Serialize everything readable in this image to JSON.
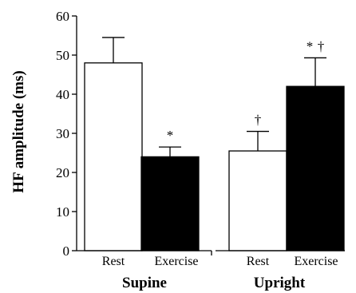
{
  "chart_data": {
    "type": "bar",
    "title": "",
    "xlabel": "",
    "ylabel": "HF amplitude (ms)",
    "ylim": [
      0,
      60
    ],
    "yticks": [
      "0",
      "10",
      "20",
      "30",
      "40",
      "50",
      "60"
    ],
    "groups": [
      {
        "label": "Supine",
        "categories": [
          "Rest",
          "Exercise"
        ]
      },
      {
        "label": "Upright",
        "categories": [
          "Rest",
          "Exercise"
        ]
      }
    ],
    "categories": [
      "Rest",
      "Exercise",
      "Rest",
      "Exercise"
    ],
    "values": [
      48,
      24,
      25.5,
      42
    ],
    "errors": [
      6.5,
      2.5,
      5,
      7.3
    ],
    "bar_fills": [
      "#ffffff",
      "#000000",
      "#ffffff",
      "#000000"
    ],
    "annotations": [
      "",
      "*",
      "†",
      "*†"
    ],
    "colors": {
      "rest": "#ffffff",
      "exercise": "#000000",
      "dagger": "#8c8c8c",
      "axis": "#000000"
    },
    "grid": false,
    "legend": "none"
  }
}
